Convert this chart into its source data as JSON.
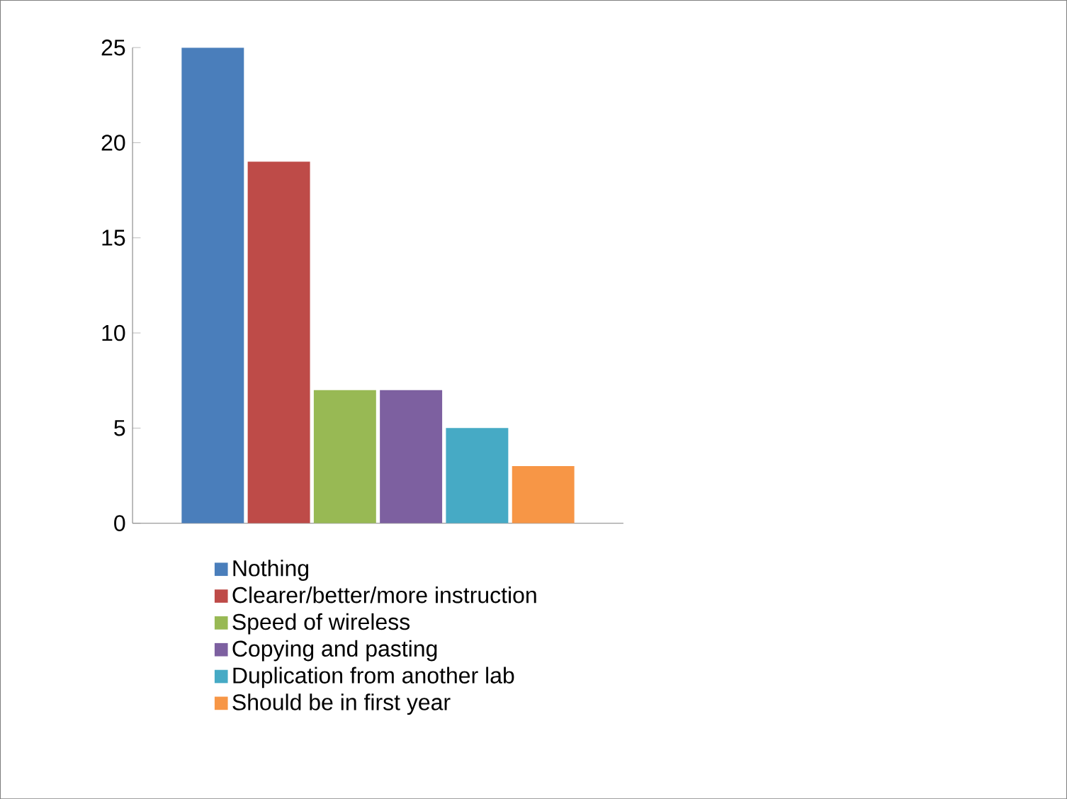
{
  "chart_data": {
    "type": "bar",
    "categories": [
      null
    ],
    "series": [
      {
        "name": "Nothing",
        "color": "#4a7ebb",
        "values": [
          25
        ]
      },
      {
        "name": "Clearer/better/more instruction",
        "color": "#be4b48",
        "values": [
          19
        ]
      },
      {
        "name": "Speed of wireless",
        "color": "#98b954",
        "values": [
          7
        ]
      },
      {
        "name": "Copying and pasting",
        "color": "#7d60a0",
        "values": [
          7
        ]
      },
      {
        "name": "Duplication from another lab",
        "color": "#46aac5",
        "values": [
          5
        ]
      },
      {
        "name": "Should be in first year",
        "color": "#f79646",
        "values": [
          3
        ]
      }
    ],
    "ylim": [
      0,
      25
    ],
    "yticks": [
      0,
      5,
      10,
      15,
      20,
      25
    ],
    "grid": false,
    "legend": "bottom"
  }
}
